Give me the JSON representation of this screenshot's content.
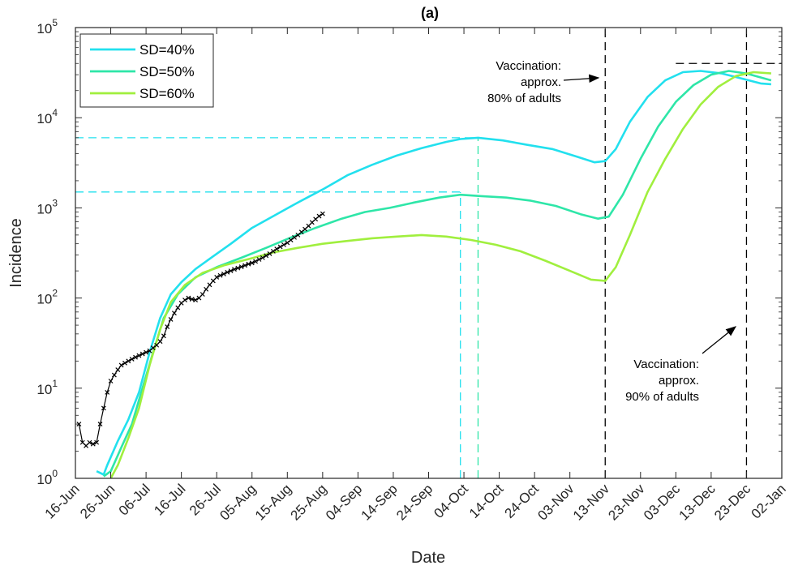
{
  "chart_data": {
    "type": "line",
    "title": "(a)",
    "xlabel": "Date",
    "ylabel": "Incidence",
    "yscale": "log",
    "ylim": [
      1,
      100000
    ],
    "xlim": [
      "2021-06-16",
      "2022-01-02"
    ],
    "x_ticks": [
      {
        "date": "2021-06-16",
        "label": "16-Jun"
      },
      {
        "date": "2021-06-26",
        "label": "26-Jun"
      },
      {
        "date": "2021-07-06",
        "label": "06-Jul"
      },
      {
        "date": "2021-07-16",
        "label": "16-Jul"
      },
      {
        "date": "2021-07-26",
        "label": "26-Jul"
      },
      {
        "date": "2021-08-05",
        "label": "05-Aug"
      },
      {
        "date": "2021-08-15",
        "label": "15-Aug"
      },
      {
        "date": "2021-08-25",
        "label": "25-Aug"
      },
      {
        "date": "2021-09-04",
        "label": "04-Sep"
      },
      {
        "date": "2021-09-14",
        "label": "14-Sep"
      },
      {
        "date": "2021-09-24",
        "label": "24-Sep"
      },
      {
        "date": "2021-10-04",
        "label": "04-Oct"
      },
      {
        "date": "2021-10-14",
        "label": "14-Oct"
      },
      {
        "date": "2021-10-24",
        "label": "24-Oct"
      },
      {
        "date": "2021-11-03",
        "label": "03-Nov"
      },
      {
        "date": "2021-11-13",
        "label": "13-Nov"
      },
      {
        "date": "2021-11-23",
        "label": "23-Nov"
      },
      {
        "date": "2021-12-03",
        "label": "03-Dec"
      },
      {
        "date": "2021-12-13",
        "label": "13-Dec"
      },
      {
        "date": "2021-12-23",
        "label": "23-Dec"
      },
      {
        "date": "2022-01-02",
        "label": "02-Jan"
      }
    ],
    "y_ticks": [
      {
        "value": 1,
        "base": "10",
        "exp": "0"
      },
      {
        "value": 10,
        "base": "10",
        "exp": "1"
      },
      {
        "value": 100,
        "base": "10",
        "exp": "2"
      },
      {
        "value": 1000,
        "base": "10",
        "exp": "3"
      },
      {
        "value": 10000,
        "base": "10",
        "exp": "4"
      },
      {
        "value": 100000,
        "base": "10",
        "exp": "5"
      }
    ],
    "grid": false,
    "legend_position": "top-left",
    "series": [
      {
        "name": "SD=40%",
        "color": "#22e0ee",
        "points": [
          [
            "2021-06-22",
            1.2
          ],
          [
            "2021-06-24",
            1.1
          ],
          [
            "2021-06-25",
            1.4
          ],
          [
            "2021-06-28",
            2.6
          ],
          [
            "2021-07-01",
            4.5
          ],
          [
            "2021-07-04",
            9
          ],
          [
            "2021-07-07",
            25
          ],
          [
            "2021-07-10",
            60
          ],
          [
            "2021-07-13",
            110
          ],
          [
            "2021-07-16",
            150
          ],
          [
            "2021-07-20",
            210
          ],
          [
            "2021-07-25",
            290
          ],
          [
            "2021-07-30",
            400
          ],
          [
            "2021-08-05",
            600
          ],
          [
            "2021-08-12",
            850
          ],
          [
            "2021-08-18",
            1150
          ],
          [
            "2021-08-25",
            1600
          ],
          [
            "2021-09-01",
            2300
          ],
          [
            "2021-09-08",
            3000
          ],
          [
            "2021-09-15",
            3800
          ],
          [
            "2021-09-22",
            4600
          ],
          [
            "2021-09-29",
            5400
          ],
          [
            "2021-10-03",
            5800
          ],
          [
            "2021-10-08",
            6000
          ],
          [
            "2021-10-15",
            5600
          ],
          [
            "2021-10-22",
            5000
          ],
          [
            "2021-10-29",
            4500
          ],
          [
            "2021-11-05",
            3700
          ],
          [
            "2021-11-10",
            3200
          ],
          [
            "2021-11-13",
            3300
          ],
          [
            "2021-11-16",
            4500
          ],
          [
            "2021-11-20",
            9000
          ],
          [
            "2021-11-25",
            17000
          ],
          [
            "2021-11-30",
            26000
          ],
          [
            "2021-12-05",
            32000
          ],
          [
            "2021-12-10",
            33000
          ],
          [
            "2021-12-16",
            31000
          ],
          [
            "2021-12-22",
            27000
          ],
          [
            "2021-12-27",
            24000
          ],
          [
            "2021-12-30",
            23500
          ]
        ]
      },
      {
        "name": "SD=50%",
        "color": "#2ee6a8",
        "points": [
          [
            "2021-06-24",
            1.05
          ],
          [
            "2021-06-26",
            1.2
          ],
          [
            "2021-06-29",
            2.2
          ],
          [
            "2021-07-02",
            4
          ],
          [
            "2021-07-05",
            10
          ],
          [
            "2021-07-08",
            25
          ],
          [
            "2021-07-11",
            60
          ],
          [
            "2021-07-15",
            110
          ],
          [
            "2021-07-20",
            170
          ],
          [
            "2021-07-26",
            220
          ],
          [
            "2021-08-02",
            280
          ],
          [
            "2021-08-09",
            360
          ],
          [
            "2021-08-16",
            470
          ],
          [
            "2021-08-23",
            600
          ],
          [
            "2021-08-30",
            750
          ],
          [
            "2021-09-06",
            900
          ],
          [
            "2021-09-13",
            1000
          ],
          [
            "2021-09-20",
            1150
          ],
          [
            "2021-09-27",
            1300
          ],
          [
            "2021-10-03",
            1400
          ],
          [
            "2021-10-09",
            1350
          ],
          [
            "2021-10-16",
            1300
          ],
          [
            "2021-10-23",
            1200
          ],
          [
            "2021-10-30",
            1050
          ],
          [
            "2021-11-06",
            850
          ],
          [
            "2021-11-11",
            760
          ],
          [
            "2021-11-14",
            800
          ],
          [
            "2021-11-18",
            1400
          ],
          [
            "2021-11-23",
            3500
          ],
          [
            "2021-11-28",
            8000
          ],
          [
            "2021-12-03",
            15000
          ],
          [
            "2021-12-08",
            23000
          ],
          [
            "2021-12-13",
            30000
          ],
          [
            "2021-12-18",
            33000
          ],
          [
            "2021-12-23",
            31000
          ],
          [
            "2021-12-30",
            26000
          ]
        ]
      },
      {
        "name": "SD=60%",
        "color": "#a0ef3e",
        "points": [
          [
            "2021-06-26",
            1.0
          ],
          [
            "2021-06-28",
            1.4
          ],
          [
            "2021-07-01",
            2.8
          ],
          [
            "2021-07-04",
            6
          ],
          [
            "2021-07-07",
            18
          ],
          [
            "2021-07-10",
            45
          ],
          [
            "2021-07-13",
            90
          ],
          [
            "2021-07-17",
            140
          ],
          [
            "2021-07-22",
            190
          ],
          [
            "2021-07-28",
            230
          ],
          [
            "2021-08-04",
            270
          ],
          [
            "2021-08-11",
            320
          ],
          [
            "2021-08-18",
            360
          ],
          [
            "2021-08-25",
            400
          ],
          [
            "2021-09-01",
            430
          ],
          [
            "2021-09-08",
            460
          ],
          [
            "2021-09-15",
            480
          ],
          [
            "2021-09-22",
            500
          ],
          [
            "2021-09-29",
            480
          ],
          [
            "2021-10-06",
            440
          ],
          [
            "2021-10-13",
            390
          ],
          [
            "2021-10-20",
            330
          ],
          [
            "2021-10-27",
            260
          ],
          [
            "2021-11-03",
            200
          ],
          [
            "2021-11-09",
            160
          ],
          [
            "2021-11-13",
            155
          ],
          [
            "2021-11-16",
            220
          ],
          [
            "2021-11-20",
            500
          ],
          [
            "2021-11-25",
            1500
          ],
          [
            "2021-11-30",
            3500
          ],
          [
            "2021-12-05",
            7500
          ],
          [
            "2021-12-10",
            14000
          ],
          [
            "2021-12-15",
            22000
          ],
          [
            "2021-12-20",
            29000
          ],
          [
            "2021-12-25",
            32000
          ],
          [
            "2021-12-30",
            31000
          ]
        ]
      }
    ],
    "observed": {
      "color": "#000000",
      "points": [
        [
          "2021-06-17",
          4
        ],
        [
          "2021-06-18",
          2.5
        ],
        [
          "2021-06-19",
          2.3
        ],
        [
          "2021-06-20",
          2.5
        ],
        [
          "2021-06-21",
          2.4
        ],
        [
          "2021-06-22",
          2.5
        ],
        [
          "2021-06-23",
          4
        ],
        [
          "2021-06-24",
          6
        ],
        [
          "2021-06-25",
          9
        ],
        [
          "2021-06-26",
          12
        ],
        [
          "2021-06-27",
          14
        ],
        [
          "2021-06-28",
          16
        ],
        [
          "2021-06-29",
          18
        ],
        [
          "2021-06-30",
          19
        ],
        [
          "2021-07-01",
          20
        ],
        [
          "2021-07-02",
          21
        ],
        [
          "2021-07-03",
          22
        ],
        [
          "2021-07-04",
          23
        ],
        [
          "2021-07-05",
          24
        ],
        [
          "2021-07-06",
          25
        ],
        [
          "2021-07-07",
          26
        ],
        [
          "2021-07-08",
          28
        ],
        [
          "2021-07-09",
          30
        ],
        [
          "2021-07-10",
          33
        ],
        [
          "2021-07-11",
          38
        ],
        [
          "2021-07-12",
          48
        ],
        [
          "2021-07-13",
          58
        ],
        [
          "2021-07-14",
          68
        ],
        [
          "2021-07-15",
          78
        ],
        [
          "2021-07-16",
          88
        ],
        [
          "2021-07-17",
          95
        ],
        [
          "2021-07-18",
          100
        ],
        [
          "2021-07-19",
          97
        ],
        [
          "2021-07-20",
          95
        ],
        [
          "2021-07-21",
          100
        ],
        [
          "2021-07-22",
          110
        ],
        [
          "2021-07-23",
          125
        ],
        [
          "2021-07-24",
          140
        ],
        [
          "2021-07-25",
          155
        ],
        [
          "2021-07-26",
          170
        ],
        [
          "2021-07-27",
          178
        ],
        [
          "2021-07-28",
          185
        ],
        [
          "2021-07-29",
          193
        ],
        [
          "2021-07-30",
          200
        ],
        [
          "2021-07-31",
          208
        ],
        [
          "2021-08-01",
          215
        ],
        [
          "2021-08-02",
          222
        ],
        [
          "2021-08-03",
          230
        ],
        [
          "2021-08-04",
          238
        ],
        [
          "2021-08-05",
          245
        ],
        [
          "2021-08-06",
          255
        ],
        [
          "2021-08-07",
          268
        ],
        [
          "2021-08-08",
          280
        ],
        [
          "2021-08-09",
          295
        ],
        [
          "2021-08-10",
          310
        ],
        [
          "2021-08-11",
          330
        ],
        [
          "2021-08-12",
          350
        ],
        [
          "2021-08-13",
          370
        ],
        [
          "2021-08-14",
          390
        ],
        [
          "2021-08-15",
          410
        ],
        [
          "2021-08-16",
          440
        ],
        [
          "2021-08-17",
          470
        ],
        [
          "2021-08-18",
          500
        ],
        [
          "2021-08-19",
          540
        ],
        [
          "2021-08-20",
          580
        ],
        [
          "2021-08-21",
          630
        ],
        [
          "2021-08-22",
          690
        ],
        [
          "2021-08-23",
          750
        ],
        [
          "2021-08-24",
          810
        ],
        [
          "2021-08-25",
          860
        ]
      ]
    },
    "reference_lines": [
      {
        "id": "peak-40-h",
        "orientation": "horizontal",
        "value": 6000,
        "from": "2021-06-16",
        "to": "2021-10-08",
        "color": "#22e0ee",
        "style": "dashed"
      },
      {
        "id": "peak-40-v",
        "orientation": "vertical",
        "value": "2021-10-08",
        "from": 1,
        "to": 6000,
        "color": "#2ee6a8",
        "style": "dashed"
      },
      {
        "id": "peak-50-h",
        "orientation": "horizontal",
        "value": 1500,
        "from": "2021-06-16",
        "to": "2021-10-03",
        "color": "#22e0ee",
        "style": "dashed"
      },
      {
        "id": "peak-50-v",
        "orientation": "vertical",
        "value": "2021-10-03",
        "from": 1,
        "to": 1500,
        "color": "#22e0ee",
        "style": "dashed"
      },
      {
        "id": "vacc-80-v",
        "orientation": "vertical",
        "value": "2021-11-13",
        "from": 1,
        "to": 100000,
        "color": "#000000",
        "style": "dashed"
      },
      {
        "id": "vacc-90-v",
        "orientation": "vertical",
        "value": "2021-12-23",
        "from": 1,
        "to": 100000,
        "color": "#000000",
        "style": "dashed"
      },
      {
        "id": "late-peak-h",
        "orientation": "horizontal",
        "value": 40000,
        "from": "2021-12-03",
        "to": "2022-01-02",
        "color": "#000000",
        "style": "dashed"
      }
    ],
    "annotations": [
      {
        "id": "vacc-80",
        "lines": [
          "Vaccination:",
          "approx.",
          "80% of adults"
        ]
      },
      {
        "id": "vacc-90",
        "lines": [
          "Vaccination:",
          "approx.",
          "90% of adults"
        ]
      }
    ]
  }
}
